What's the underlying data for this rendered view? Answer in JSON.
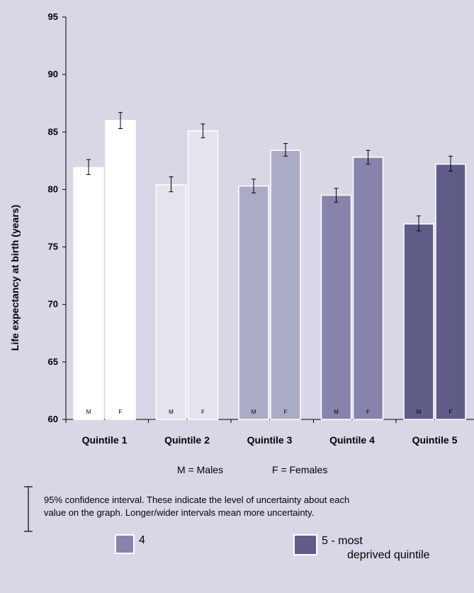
{
  "chart_data": {
    "type": "bar",
    "title": "",
    "ylabel": "Life expectancy at birth (years)",
    "ylim": [
      60,
      95
    ],
    "yticks": [
      60,
      65,
      70,
      75,
      80,
      85,
      90,
      95
    ],
    "categories": [
      "Quintile 1",
      "Quintile 2",
      "Quintile 3",
      "Quintile 4",
      "Quintile 5"
    ],
    "bar_letters": {
      "males": "M",
      "females": "F"
    },
    "series": [
      {
        "key": "males",
        "values": [
          81.9,
          80.4,
          80.3,
          79.5,
          77.0
        ],
        "ci_low": [
          81.3,
          79.8,
          79.7,
          78.9,
          76.4
        ],
        "ci_high": [
          82.6,
          81.1,
          80.9,
          80.1,
          77.7
        ]
      },
      {
        "key": "females",
        "values": [
          86.0,
          85.1,
          83.4,
          82.8,
          82.2
        ],
        "ci_low": [
          85.3,
          84.5,
          82.9,
          82.2,
          81.6
        ],
        "ci_high": [
          86.7,
          85.7,
          84.0,
          83.4,
          82.9
        ]
      }
    ],
    "fill_colors": [
      {
        "male": "#ffffff",
        "female": "#ffffff"
      },
      {
        "male": "#e4e3ee",
        "female": "#e4e3ee"
      },
      {
        "male": "#acabc6",
        "female": "#acabc6"
      },
      {
        "male": "#8684aa",
        "female": "#8684aa"
      },
      {
        "male": "#5f5c88",
        "female": "#5f5c88"
      }
    ]
  },
  "key": {
    "males": "M = Males",
    "females": "F = Females"
  },
  "ci_note": {
    "line1": "95% confidence interval. These indicate the level of uncertainty about each",
    "line2": "value on the graph. Longer/wider intervals mean more uncertainty."
  },
  "legend": [
    {
      "label": "4",
      "color": "#8684aa"
    },
    {
      "label_line1": "5 - most",
      "label_line2": "deprived quintile",
      "color": "#5f5c88"
    }
  ]
}
